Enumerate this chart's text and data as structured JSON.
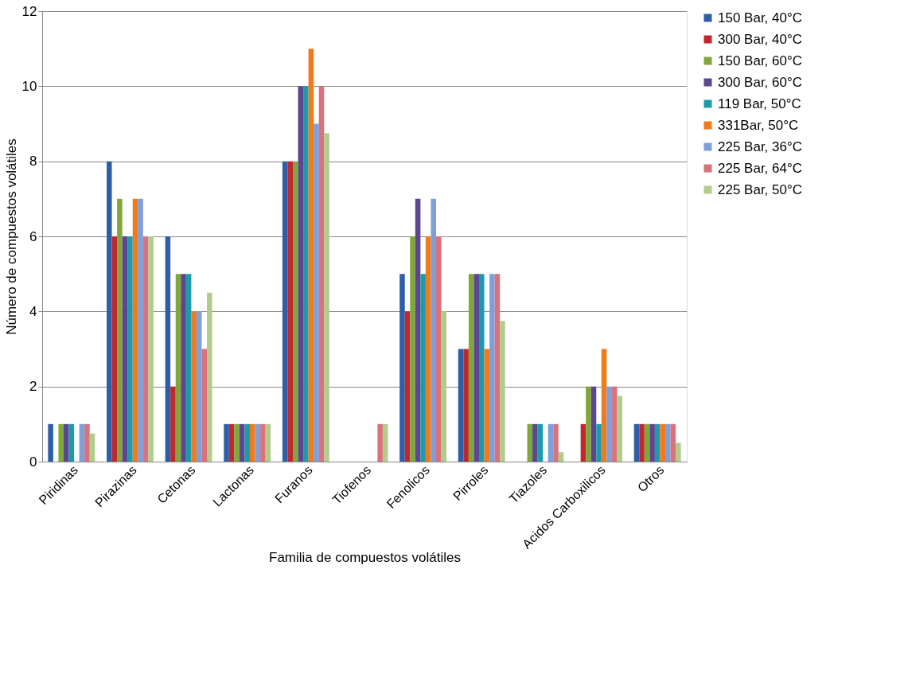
{
  "chart_data": {
    "type": "bar",
    "xlabel": "Familia de compuestos volátiles",
    "ylabel": "Número de compuestos volátiles",
    "categories": [
      "Piridinas",
      "Pirazinas",
      "Cetonas",
      "Lactonas",
      "Furanos",
      "Tiofenos",
      "Fenolicos",
      "Pirroles",
      "Tiazoles",
      "Acidos Carboxilicos",
      "Otros"
    ],
    "series": [
      {
        "name": "150 Bar, 40°C",
        "color": "#2f5ea8",
        "values": [
          1,
          8,
          6,
          1,
          8,
          0,
          5,
          3,
          0,
          0,
          1
        ]
      },
      {
        "name": "300 Bar, 40°C",
        "color": "#c0282d",
        "values": [
          0,
          6,
          2,
          1,
          8,
          0,
          4,
          3,
          0,
          1,
          1
        ]
      },
      {
        "name": "150 Bar, 60°C",
        "color": "#80a73b",
        "values": [
          1,
          7,
          5,
          1,
          8,
          0,
          6,
          5,
          1,
          2,
          1
        ]
      },
      {
        "name": "300 Bar, 60°C",
        "color": "#5c4690",
        "values": [
          1,
          6,
          5,
          1,
          10,
          0,
          7,
          5,
          1,
          2,
          1
        ]
      },
      {
        "name": "119 Bar, 50°C",
        "color": "#1e9bab",
        "values": [
          1,
          6,
          5,
          1,
          10,
          0,
          5,
          5,
          1,
          1,
          1
        ]
      },
      {
        "name": "331Bar, 50°C",
        "color": "#f07b1c",
        "values": [
          0,
          7,
          4,
          1,
          11,
          0,
          6,
          3,
          0,
          3,
          1
        ]
      },
      {
        "name": "225 Bar, 36°C",
        "color": "#7d9fdb",
        "values": [
          1,
          7,
          4,
          1,
          9,
          0,
          7,
          5,
          1,
          2,
          1
        ]
      },
      {
        "name": "225 Bar, 64°C",
        "color": "#d8727b",
        "values": [
          1,
          6,
          3,
          1,
          10,
          1,
          6,
          5,
          1,
          2,
          1
        ]
      },
      {
        "name": "225 Bar, 50°C",
        "color": "#b3cc8c",
        "values": [
          0.75,
          6,
          4.5,
          1,
          8.75,
          1,
          4,
          3.75,
          0.25,
          1.75,
          0.5
        ]
      }
    ],
    "ylim": [
      0,
      12
    ],
    "yticks": [
      0,
      2,
      4,
      6,
      8,
      10,
      12
    ],
    "grid": "y",
    "legend": "right"
  }
}
